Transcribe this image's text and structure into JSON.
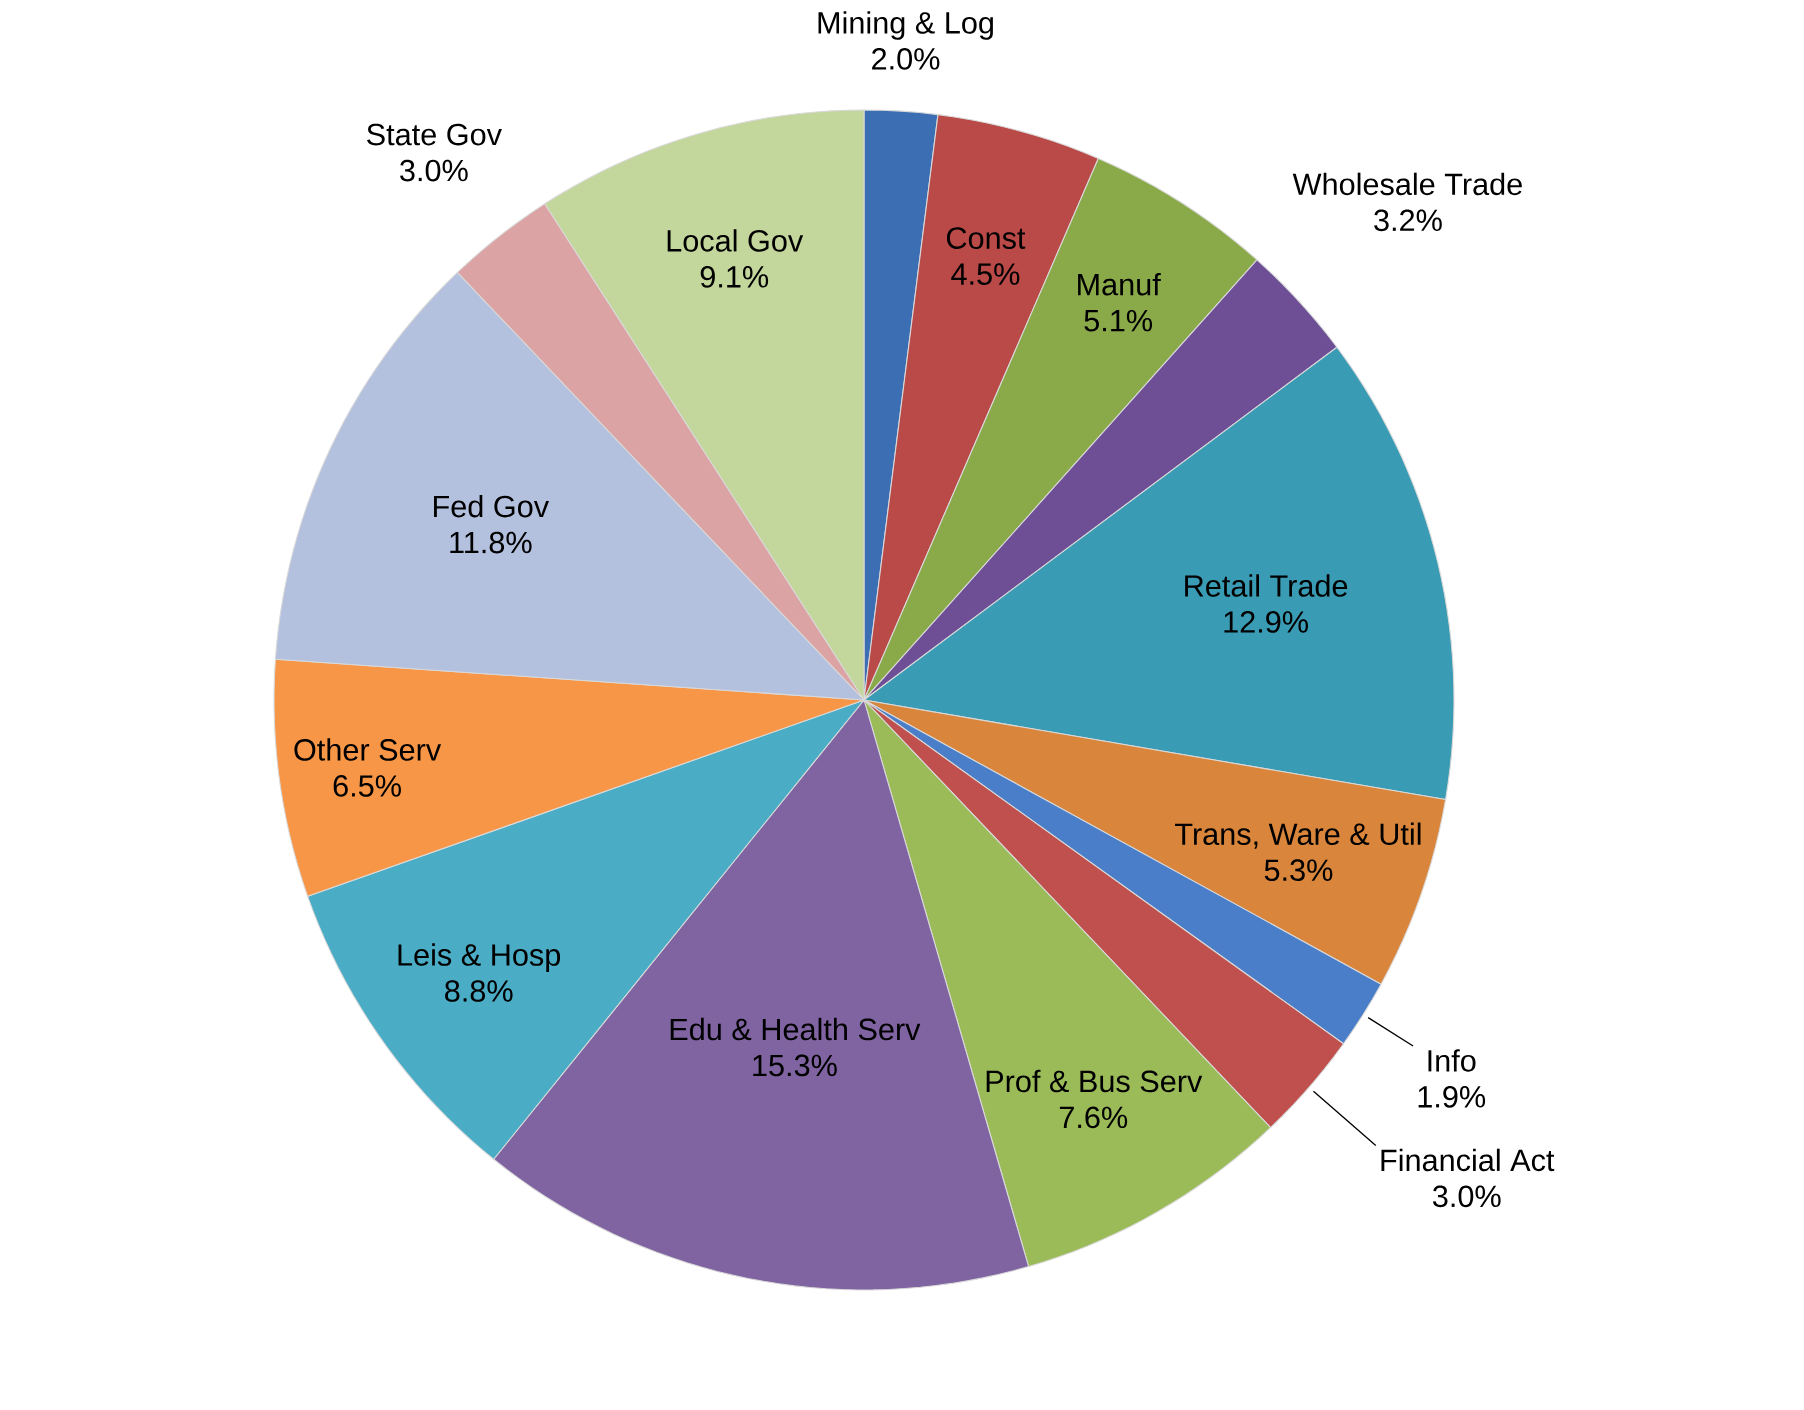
{
  "chart_data": {
    "type": "pie",
    "categories": [
      "Mining & Log",
      "Const",
      "Manuf",
      "Wholesale Trade",
      "Retail Trade",
      "Trans, Ware & Util",
      "Info",
      "Financial Act",
      "Prof & Bus Serv",
      "Edu & Health Serv",
      "Leis & Hosp",
      "Other Serv",
      "Fed Gov",
      "State Gov",
      "Local Gov"
    ],
    "values": [
      2.0,
      4.5,
      5.1,
      3.2,
      12.9,
      5.3,
      1.9,
      3.0,
      7.6,
      15.3,
      8.8,
      6.5,
      11.8,
      3.0,
      9.1
    ],
    "value_labels": [
      "2.0%",
      "4.5%",
      "5.1%",
      "3.2%",
      "12.9%",
      "5.3%",
      "1.9%",
      "3.0%",
      "7.6%",
      "15.3%",
      "8.8%",
      "6.5%",
      "11.8%",
      "3.0%",
      "9.1%"
    ],
    "colors": [
      "#3c6eb4",
      "#b94a48",
      "#8aaa4a",
      "#6e4f96",
      "#3a9bb4",
      "#d9853b",
      "#4a7ec8",
      "#c0504d",
      "#9bbb59",
      "#8064a2",
      "#4bacc6",
      "#f79646",
      "#b3c0de",
      "#dba3a3",
      "#c3d69b"
    ]
  }
}
